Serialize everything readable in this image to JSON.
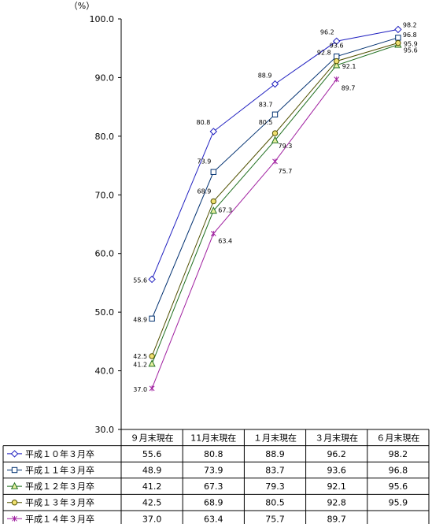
{
  "chart_data": {
    "type": "line",
    "unit_label": "（%）",
    "ylim": [
      30.0,
      100.0
    ],
    "yticks": [
      "30.0",
      "40.0",
      "50.0",
      "60.0",
      "70.0",
      "80.0",
      "90.0",
      "100.0"
    ],
    "grid": false,
    "legend_placement": "data-table-left",
    "categories": [
      "９月末現在",
      "11月末現在",
      "１月末現在",
      "３月末現在",
      "６月末現在"
    ],
    "series": [
      {
        "name": "平成１０年３月卒",
        "values": [
          55.6,
          80.8,
          88.9,
          96.2,
          98.2
        ],
        "point_labels": [
          "55.6",
          "80.8",
          "88.9",
          "96.2",
          "98.2"
        ],
        "table_values": [
          "55.6",
          "80.8",
          "88.9",
          "96.2",
          "98.2"
        ],
        "color": "#2020c0",
        "marker": "diamond"
      },
      {
        "name": "平成１１年３月卒",
        "values": [
          48.9,
          73.9,
          83.7,
          93.6,
          96.8
        ],
        "point_labels": [
          "48.9",
          "73.9",
          "83.7",
          "93.6",
          "96.8"
        ],
        "table_values": [
          "48.9",
          "73.9",
          "83.7",
          "93.6",
          "96.8"
        ],
        "color": "#003070",
        "marker": "square"
      },
      {
        "name": "平成１２年３月卒",
        "values": [
          41.2,
          67.3,
          79.3,
          92.1,
          95.6
        ],
        "point_labels": [
          "41.2",
          "67.3",
          "79.3",
          "92.1",
          "95.6"
        ],
        "table_values": [
          "41.2",
          "67.3",
          "79.3",
          "92.1",
          "95.6"
        ],
        "color": "#207020",
        "marker": "triangle"
      },
      {
        "name": "平成１３年３月卒",
        "values": [
          42.5,
          68.9,
          80.5,
          92.8,
          95.9
        ],
        "point_labels": [
          "42.5",
          "68.9",
          "80.5",
          "92.8",
          "95.9"
        ],
        "table_values": [
          "42.5",
          "68.9",
          "80.5",
          "92.8",
          "95.9"
        ],
        "color": "#505000",
        "marker": "circle"
      },
      {
        "name": "平成１４年３月卒",
        "values": [
          37.0,
          63.4,
          75.7,
          89.7,
          null
        ],
        "point_labels": [
          "37.0",
          "63.4",
          "75.7",
          "89.7",
          null
        ],
        "table_values": [
          "37.0",
          "63.4",
          "75.7",
          "89.7",
          ""
        ],
        "color": "#a020a0",
        "marker": "star"
      }
    ]
  }
}
